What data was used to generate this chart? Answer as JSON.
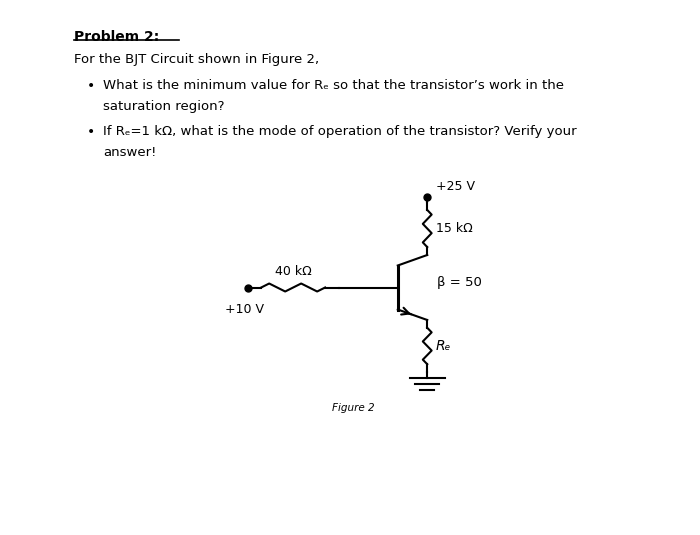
{
  "background_color": "#f0f0f0",
  "page_bg": "#ffffff",
  "title_text": "Problem 2:",
  "line1": "For the BJT Circuit shown in Figure 2,",
  "bullet1_line1": "What is the minimum value for Rₑ so that the transistor’s work in the",
  "bullet1_line2": "saturation region?",
  "bullet2_line1": "If Rₑ=1 kΩ, what is the mode of operation of the transistor? Verify your",
  "bullet2_line2": "answer!",
  "figure_caption": "Figure 2",
  "vcc_label": "+25 V",
  "rc_label": "15 kΩ",
  "rb_label": "40 kΩ",
  "vb_label": "+10 V",
  "beta_label": "β = 50",
  "re_label": "Rₑ",
  "text_color": "#000000",
  "circuit_color": "#000000"
}
